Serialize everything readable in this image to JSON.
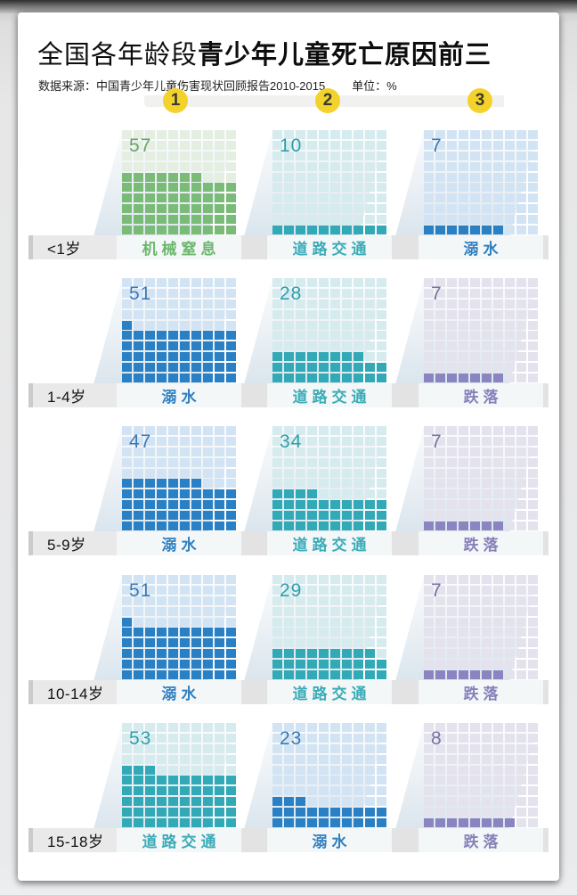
{
  "header": {
    "title_prefix": "全国各年龄段",
    "title_emphasis": "青少年儿童死亡原因前三",
    "source": "数据来源：中国青少年儿童伤害现状回顾报告2010-2015",
    "unit_label": "单位：%",
    "ranks": [
      "1",
      "2",
      "3"
    ],
    "rank_circle_color": "#f3d32b"
  },
  "themes": {
    "green": {
      "fill": "#7abc77",
      "empty": "#e4eee1",
      "number": "#69a26b",
      "label": "#6cb76e"
    },
    "teal": {
      "fill": "#31a9b6",
      "empty": "#d5ebee",
      "number": "#2f9fab",
      "label": "#3aacb8"
    },
    "blue": {
      "fill": "#2a80c5",
      "empty": "#d2e4f3",
      "number": "#3b79b3",
      "label": "#2e7fc1"
    },
    "purple": {
      "fill": "#8a84c0",
      "empty": "#e3e2ed",
      "number": "#77719f",
      "label": "#8781bb"
    }
  },
  "chart_data": {
    "type": "waffle",
    "title": "全国各年龄段青少年儿童死亡原因前三",
    "source": "数据来源：中国青少年儿童伤害现状回顾报告2010-2015",
    "unit": "%",
    "grid_rows": 10,
    "grid_cols": 10,
    "fill_order": "bottom-up, partial top row fills from left",
    "age_groups": [
      "<1岁",
      "1-4岁",
      "5-9岁",
      "10-14岁",
      "15-18岁"
    ],
    "groups": [
      {
        "age": "<1岁",
        "cells": [
          {
            "rank": 1,
            "cause": "机械窒息",
            "value": 57,
            "theme": "green"
          },
          {
            "rank": 2,
            "cause": "道路交通",
            "value": 10,
            "theme": "teal"
          },
          {
            "rank": 3,
            "cause": "溺水",
            "value": 7,
            "theme": "blue"
          }
        ]
      },
      {
        "age": "1-4岁",
        "cells": [
          {
            "rank": 1,
            "cause": "溺水",
            "value": 51,
            "theme": "blue"
          },
          {
            "rank": 2,
            "cause": "道路交通",
            "value": 28,
            "theme": "teal"
          },
          {
            "rank": 3,
            "cause": "跌落",
            "value": 7,
            "theme": "purple"
          }
        ]
      },
      {
        "age": "5-9岁",
        "cells": [
          {
            "rank": 1,
            "cause": "溺水",
            "value": 47,
            "theme": "blue"
          },
          {
            "rank": 2,
            "cause": "道路交通",
            "value": 34,
            "theme": "teal"
          },
          {
            "rank": 3,
            "cause": "跌落",
            "value": 7,
            "theme": "purple"
          }
        ]
      },
      {
        "age": "10-14岁",
        "cells": [
          {
            "rank": 1,
            "cause": "溺水",
            "value": 51,
            "theme": "blue"
          },
          {
            "rank": 2,
            "cause": "道路交通",
            "value": 29,
            "theme": "teal"
          },
          {
            "rank": 3,
            "cause": "跌落",
            "value": 7,
            "theme": "purple"
          }
        ]
      },
      {
        "age": "15-18岁",
        "cells": [
          {
            "rank": 1,
            "cause": "道路交通",
            "value": 53,
            "theme": "teal"
          },
          {
            "rank": 2,
            "cause": "溺水",
            "value": 23,
            "theme": "blue"
          },
          {
            "rank": 3,
            "cause": "跌落",
            "value": 8,
            "theme": "purple"
          }
        ]
      }
    ]
  },
  "layout_colors": {
    "band": "#e3e3e3",
    "panel": "#f4f7f7",
    "age_bar": "#e9e9e9",
    "age_bar_edge": "#cbcbcb"
  }
}
